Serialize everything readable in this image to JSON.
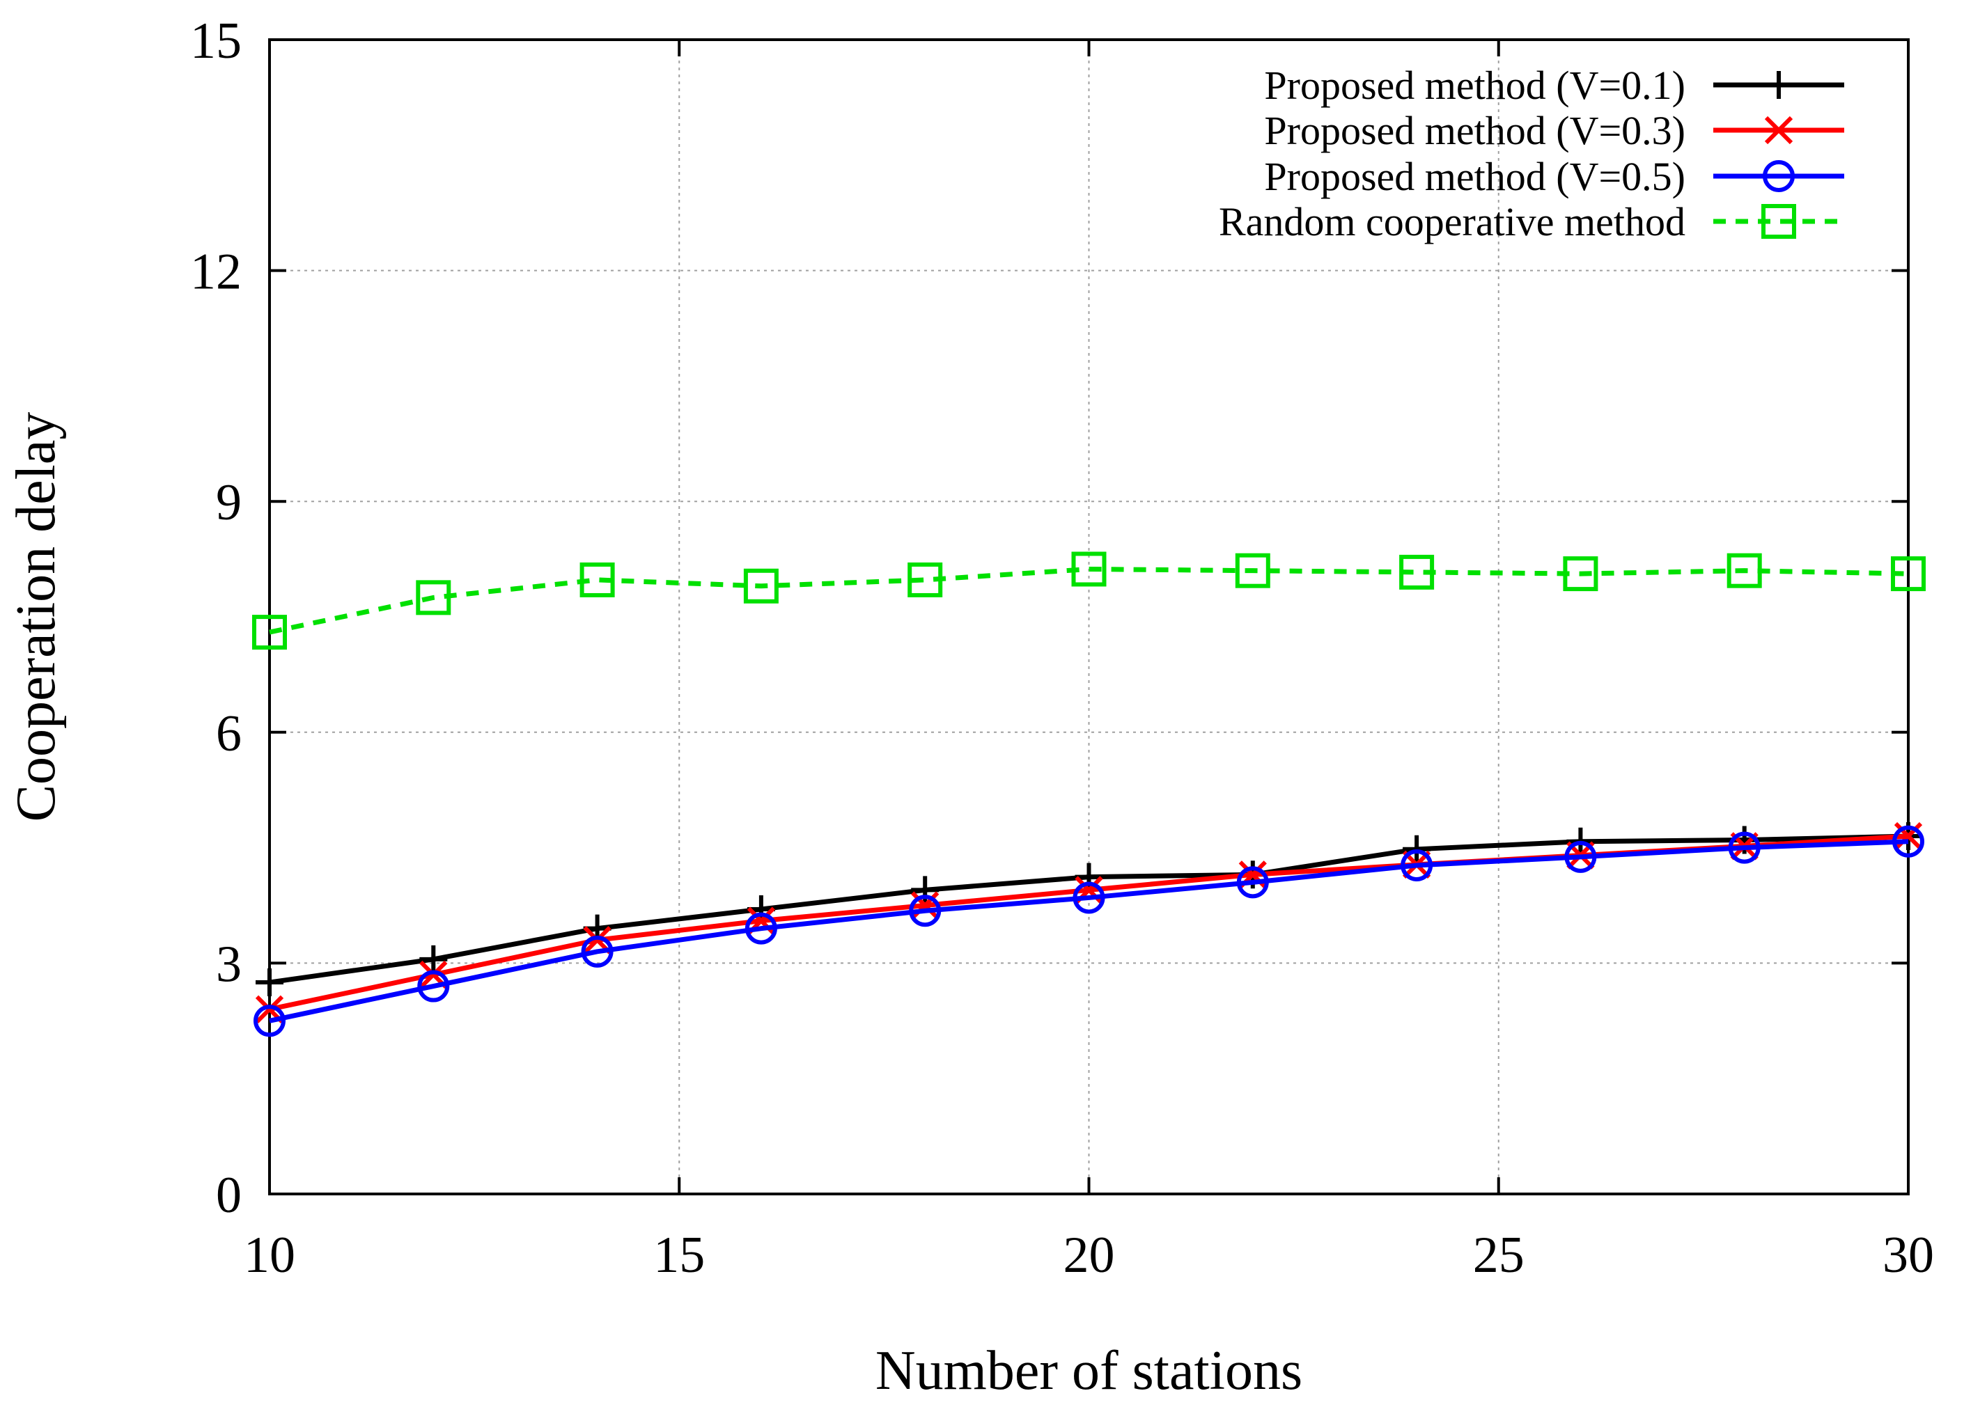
{
  "chart_data": {
    "type": "line",
    "title": "",
    "xlabel": "Number of stations",
    "ylabel": "Cooperation delay",
    "xlim": [
      10,
      30
    ],
    "ylim": [
      0,
      15
    ],
    "xticks": [
      10,
      15,
      20,
      25,
      30
    ],
    "yticks": [
      0,
      3,
      6,
      9,
      12,
      15
    ],
    "grid": true,
    "legend_position": "top-right",
    "x": [
      10,
      12,
      14,
      16,
      18,
      20,
      22,
      24,
      26,
      28,
      30
    ],
    "series": [
      {
        "name": "Proposed method (V=0.1)",
        "color": "#000000",
        "marker": "plus",
        "dash": "solid",
        "values": [
          2.75,
          3.05,
          3.45,
          3.7,
          3.95,
          4.12,
          4.15,
          4.48,
          4.58,
          4.6,
          4.65
        ]
      },
      {
        "name": "Proposed method (V=0.3)",
        "color": "#ff0000",
        "marker": "cross",
        "dash": "solid",
        "values": [
          2.4,
          2.85,
          3.3,
          3.55,
          3.75,
          3.95,
          4.15,
          4.28,
          4.4,
          4.52,
          4.65
        ]
      },
      {
        "name": "Proposed method (V=0.5)",
        "color": "#0000ff",
        "marker": "circle",
        "dash": "solid",
        "values": [
          2.25,
          2.7,
          3.15,
          3.45,
          3.68,
          3.85,
          4.05,
          4.27,
          4.38,
          4.5,
          4.58
        ]
      },
      {
        "name": "Random cooperative method",
        "color": "#00e000",
        "marker": "square",
        "dash": "dashed",
        "values": [
          7.3,
          7.75,
          7.98,
          7.9,
          7.98,
          8.12,
          8.1,
          8.08,
          8.06,
          8.1,
          8.06
        ]
      }
    ]
  }
}
